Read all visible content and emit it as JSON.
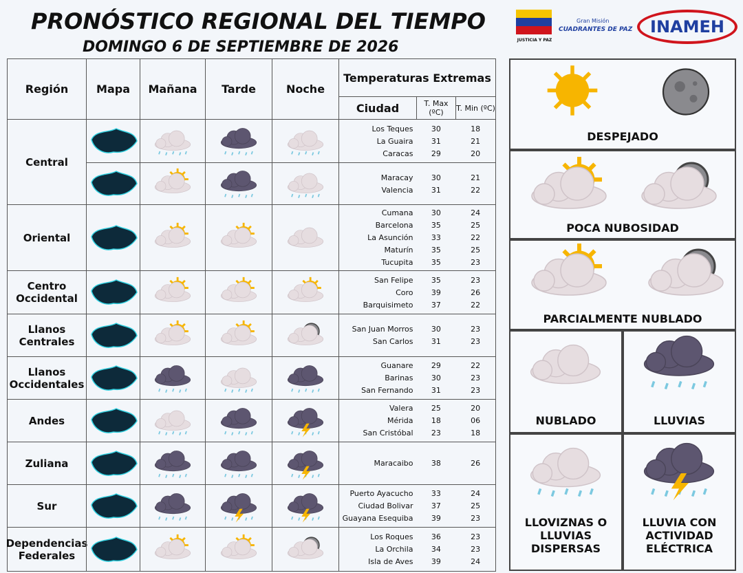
{
  "header": {
    "title": "PRONÓSTICO REGIONAL DEL TIEMPO",
    "date": "DOMINGO 6 DE SEPTIEMBRE DE 2026"
  },
  "logos": {
    "ministry": "JUSTICIA Y PAZ",
    "mission_top": "Gran Misión",
    "mission": "CUADRANTES DE PAZ",
    "institute": "INAMEH"
  },
  "table": {
    "headers": {
      "region": "Región",
      "map": "Mapa",
      "morning": "Mañana",
      "afternoon": "Tarde",
      "night": "Noche",
      "temps": "Temperaturas  Extremas",
      "city": "Ciudad",
      "tmax": "T. Max (ºC)",
      "tmin": "T. Min (ºC)"
    },
    "regions": [
      {
        "name": "Central",
        "rows": [
          {
            "cities": [
              {
                "city": "Los Teques",
                "tmax": "30",
                "tmin": "18"
              },
              {
                "city": "La Guaira",
                "tmax": "31",
                "tmin": "21"
              },
              {
                "city": "Caracas",
                "tmax": "29",
                "tmin": "20"
              }
            ]
          },
          {
            "cities": [
              {
                "city": "Maracay",
                "tmax": "30",
                "tmin": "21"
              },
              {
                "city": "Valencia",
                "tmax": "31",
                "tmin": "22"
              }
            ]
          }
        ]
      },
      {
        "name": "Oriental",
        "rows": [
          {
            "cities": [
              {
                "city": "Cumana",
                "tmax": "30",
                "tmin": "24"
              },
              {
                "city": "Barcelona",
                "tmax": "35",
                "tmin": "25"
              },
              {
                "city": "La Asunción",
                "tmax": "33",
                "tmin": "22"
              },
              {
                "city": "Maturín",
                "tmax": "35",
                "tmin": "25"
              },
              {
                "city": "Tucupita",
                "tmax": "35",
                "tmin": "23"
              }
            ]
          }
        ]
      },
      {
        "name": "Centro Occidental",
        "rows": [
          {
            "cities": [
              {
                "city": "San Felipe",
                "tmax": "35",
                "tmin": "23"
              },
              {
                "city": "Coro",
                "tmax": "39",
                "tmin": "26"
              },
              {
                "city": "Barquisimeto",
                "tmax": "37",
                "tmin": "22"
              }
            ]
          }
        ]
      },
      {
        "name": "Llanos Centrales",
        "rows": [
          {
            "cities": [
              {
                "city": "San Juan Morros",
                "tmax": "30",
                "tmin": "23"
              },
              {
                "city": "San Carlos",
                "tmax": "31",
                "tmin": "23"
              }
            ]
          }
        ]
      },
      {
        "name": "Llanos Occidentales",
        "rows": [
          {
            "cities": [
              {
                "city": "Guanare",
                "tmax": "29",
                "tmin": "22"
              },
              {
                "city": "Barinas",
                "tmax": "30",
                "tmin": "23"
              },
              {
                "city": "San Fernando",
                "tmax": "31",
                "tmin": "23"
              }
            ]
          }
        ]
      },
      {
        "name": "Andes",
        "rows": [
          {
            "cities": [
              {
                "city": "Valera",
                "tmax": "25",
                "tmin": "20"
              },
              {
                "city": "Mérida",
                "tmax": "18",
                "tmin": "06"
              },
              {
                "city": "San Cristóbal",
                "tmax": "23",
                "tmin": "18"
              }
            ]
          }
        ]
      },
      {
        "name": "Zuliana",
        "rows": [
          {
            "cities": [
              {
                "city": "Maracaibo",
                "tmax": "38",
                "tmin": "26"
              }
            ]
          }
        ]
      },
      {
        "name": "Sur",
        "rows": [
          {
            "cities": [
              {
                "city": "Puerto Ayacucho",
                "tmax": "33",
                "tmin": "24"
              },
              {
                "city": "Ciudad Bolivar",
                "tmax": "37",
                "tmin": "25"
              },
              {
                "city": "Guayana Esequiba",
                "tmax": "39",
                "tmin": "23"
              }
            ]
          }
        ]
      },
      {
        "name": "Dependencias Federales",
        "rows": [
          {
            "cities": [
              {
                "city": "Los Roques",
                "tmax": "36",
                "tmin": "23"
              },
              {
                "city": "La Orchila",
                "tmax": "34",
                "tmin": "23"
              },
              {
                "city": "Isla de Aves",
                "tmax": "39",
                "tmin": "24"
              }
            ]
          }
        ]
      }
    ]
  },
  "legend": [
    "DESPEJADO",
    "POCA NUBOSIDAD",
    "PARCIALMENTE NUBLADO",
    "NUBLADO",
    "LLUVIAS",
    "LLOVIZNAS O LLUVIAS DISPERSAS",
    "LLUVIA CON ACTIVIDAD ELÉCTRICA"
  ]
}
